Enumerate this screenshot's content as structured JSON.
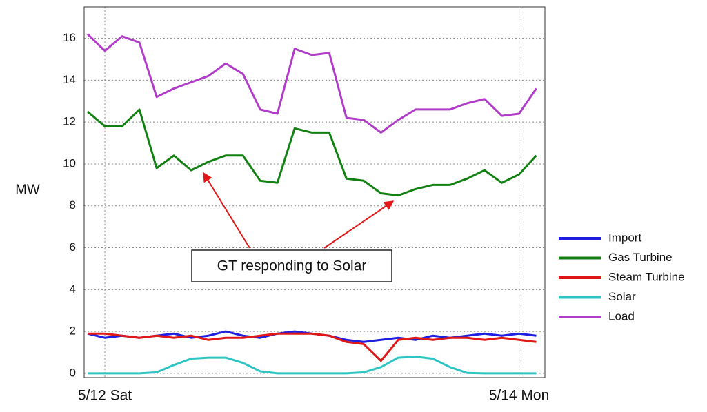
{
  "chart_data": {
    "type": "line",
    "y_label": "MW",
    "annotation": "GT responding to Solar",
    "x": [
      -2,
      0,
      2,
      4,
      6,
      8,
      10,
      12,
      14,
      16,
      18,
      20,
      22,
      24,
      26,
      28,
      30,
      32,
      34,
      36,
      38,
      40,
      42,
      44,
      46,
      48,
      50
    ],
    "xlim": [
      -2.4,
      51
    ],
    "xticks": [
      {
        "value": 0,
        "label": "5/12 Sat"
      },
      {
        "value": 48,
        "label": "5/14 Mon"
      }
    ],
    "ylim": [
      -0.2,
      17.5
    ],
    "yticks": [
      0,
      2,
      4,
      6,
      8,
      10,
      12,
      14,
      16
    ],
    "grid": true,
    "legend": "right",
    "series": [
      {
        "name": "Import",
        "color": "#1f1fe0",
        "values": [
          1.9,
          1.7,
          1.8,
          1.7,
          1.8,
          1.9,
          1.7,
          1.8,
          2.0,
          1.8,
          1.7,
          1.9,
          2.0,
          1.9,
          1.8,
          1.6,
          1.5,
          1.6,
          1.7,
          1.6,
          1.8,
          1.7,
          1.8,
          1.9,
          1.8,
          1.9,
          1.8
        ]
      },
      {
        "name": "Gas Turbine",
        "color": "#128012",
        "values": [
          12.5,
          11.8,
          11.8,
          12.6,
          9.8,
          10.4,
          9.7,
          10.1,
          10.4,
          10.4,
          9.2,
          9.1,
          11.7,
          11.5,
          11.5,
          9.3,
          9.2,
          8.6,
          8.5,
          8.8,
          9.0,
          9.0,
          9.3,
          9.7,
          9.1,
          9.5,
          10.4
        ]
      },
      {
        "name": "Steam Turbine",
        "color": "#e01818",
        "values": [
          1.9,
          1.9,
          1.8,
          1.7,
          1.8,
          1.7,
          1.8,
          1.6,
          1.7,
          1.7,
          1.8,
          1.9,
          1.9,
          1.9,
          1.8,
          1.5,
          1.4,
          0.6,
          1.6,
          1.7,
          1.6,
          1.7,
          1.7,
          1.6,
          1.7,
          1.6,
          1.5
        ]
      },
      {
        "name": "Solar",
        "color": "#2ec4c4",
        "values": [
          0,
          0,
          0,
          0,
          0.05,
          0.4,
          0.7,
          0.75,
          0.75,
          0.5,
          0.1,
          0,
          0,
          0,
          0,
          0,
          0.05,
          0.3,
          0.75,
          0.8,
          0.7,
          0.3,
          0.02,
          0,
          0,
          0,
          0
        ]
      },
      {
        "name": "Load",
        "color": "#b03cc8",
        "values": [
          16.2,
          15.4,
          16.1,
          15.8,
          13.2,
          13.6,
          13.9,
          14.2,
          14.8,
          14.3,
          12.6,
          12.4,
          15.5,
          15.2,
          15.3,
          12.2,
          12.1,
          11.5,
          12.1,
          12.6,
          12.6,
          12.6,
          12.9,
          13.1,
          12.3,
          12.4,
          13.6
        ]
      }
    ]
  }
}
